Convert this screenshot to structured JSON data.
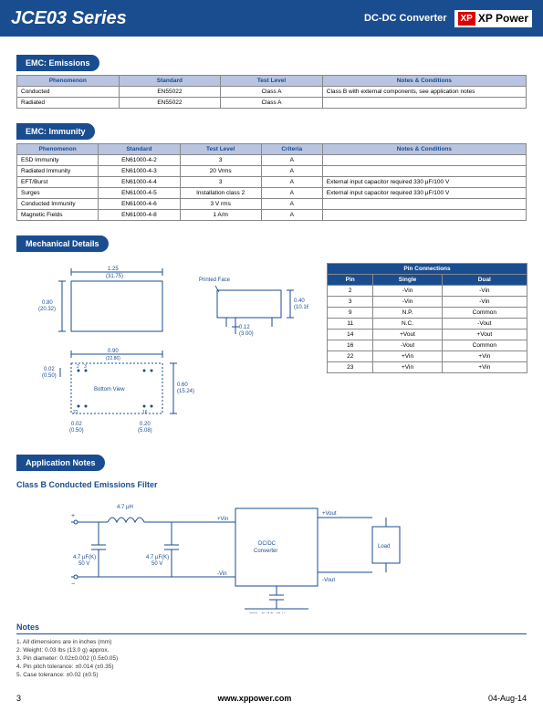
{
  "header": {
    "title": "JCE03 Series",
    "subtitle": "DC-DC Converter",
    "logo_xp": "XP",
    "logo_text": "XP Power"
  },
  "sections": {
    "emissions": "EMC: Emissions",
    "immunity": "EMC: Immunity",
    "mechanical": "Mechanical Details",
    "application": "Application Notes"
  },
  "emissions_table": {
    "headers": [
      "Phenomenon",
      "Standard",
      "Test Level",
      "Notes & Conditions"
    ],
    "rows": [
      [
        "Conducted",
        "EN55022",
        "Class A",
        "Class B with external components, see application notes"
      ],
      [
        "Radiated",
        "EN55022",
        "Class A",
        ""
      ]
    ],
    "col_widths": [
      "20%",
      "20%",
      "20%",
      "40%"
    ]
  },
  "immunity_table": {
    "headers": [
      "Phenomenon",
      "Standard",
      "Test Level",
      "Criteria",
      "Notes & Conditions"
    ],
    "rows": [
      [
        "ESD Immunity",
        "EN61000-4-2",
        "3",
        "A",
        ""
      ],
      [
        "Radiated Immunity",
        "EN61000-4-3",
        "20 Vrms",
        "A",
        ""
      ],
      [
        "EFT/Burst",
        "EN61000-4-4",
        "3",
        "A",
        "External input capacitor required 330 µF/100 V"
      ],
      [
        "Surges",
        "EN61000-4-5",
        "Installation class 2",
        "A",
        "External input capacitor required 330 µF/100 V"
      ],
      [
        "Conducted Immunity",
        "EN61000-4-6",
        "3 V rms",
        "A",
        ""
      ],
      [
        "Magnetic Fields",
        "EN61000-4-8",
        "1 A/m",
        "A",
        ""
      ]
    ],
    "col_widths": [
      "16%",
      "16%",
      "16%",
      "12%",
      "40%"
    ]
  },
  "pin_table": {
    "title": "Pin Connections",
    "headers": [
      "Pin",
      "Single",
      "Dual"
    ],
    "rows": [
      [
        "2",
        "-Vin",
        "-Vin"
      ],
      [
        "3",
        "-Vin",
        "-Vin"
      ],
      [
        "9",
        "N.P.",
        "Common"
      ],
      [
        "11",
        "N.C.",
        "-Vout"
      ],
      [
        "14",
        "+Vout",
        "+Vout"
      ],
      [
        "16",
        "-Vout",
        "Common"
      ],
      [
        "22",
        "+Vin",
        "+Vin"
      ],
      [
        "23",
        "+Vin",
        "+Vin"
      ]
    ]
  },
  "mech": {
    "top_w": "1.25",
    "top_w_mm": "(31.75)",
    "top_h": "0.80",
    "top_h_mm": "(20.32)",
    "printed_face": "Printed Face",
    "pf_h": "0.40",
    "pf_h_mm": "(10.16)",
    "pf_leg": "0.12",
    "pf_leg_mm": "(3.00)",
    "bot_label": "Bottom View",
    "bot_w": "0.90",
    "bot_w_mm": "(22.86)",
    "bot_h": "0.60",
    "bot_h_mm": "(15.24)",
    "bot_left": "0.02",
    "bot_left_mm": "(0.50)",
    "bot_bl": "0.02",
    "bot_bl_mm": "(0.50)",
    "bot_br": "0.20",
    "bot_br_mm": "(5.08)",
    "pin2": "2",
    "pin3": "3",
    "pin22": "22",
    "pin16": "16"
  },
  "app": {
    "filter_title": "Class B Conducted Emissions Filter",
    "ind": "4.7 µH",
    "cap1": "4.7 µF(K)",
    "cap1v": "50 V",
    "cap2": "4.7 µF(K)",
    "cap2v": "50 V",
    "vin_p": "+Vin",
    "vin_n": "-Vin",
    "vout_p": "+Vout",
    "vout_n": "-Vout",
    "conv": "DC/DC",
    "conv2": "Converter",
    "load": "Load",
    "ycap": "300 pF (M), 2kV"
  },
  "notes": {
    "title": "Notes",
    "items": [
      "1. All dimensions are in inches (mm)",
      "2. Weight: 0.03 lbs (13.0 g) approx.",
      "3. Pin diameter: 0.02±0.002 (0.5±0.05)",
      "4. Pin pitch tolerance: ±0.014 (±0.35)",
      "5. Case tolerance: ±0.02 (±0.5)"
    ]
  },
  "footer": {
    "page": "3",
    "url": "www.xppower.com",
    "date": "04-Aug-14"
  },
  "colors": {
    "primary": "#1a4d8f",
    "header_bg": "#b8c4e0",
    "diagram_stroke": "#1a4d8f"
  }
}
